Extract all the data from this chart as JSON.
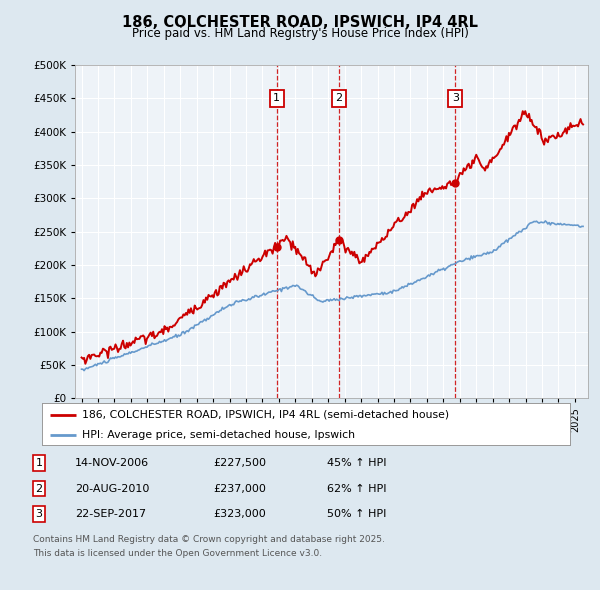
{
  "title": "186, COLCHESTER ROAD, IPSWICH, IP4 4RL",
  "subtitle": "Price paid vs. HM Land Registry's House Price Index (HPI)",
  "ylim": [
    0,
    500000
  ],
  "xlim_start": 1994.6,
  "xlim_end": 2025.8,
  "sale_dates": [
    2006.87,
    2010.64,
    2017.73
  ],
  "sale_prices": [
    227500,
    237000,
    323000
  ],
  "sale_labels": [
    "1",
    "2",
    "3"
  ],
  "legend_line1": "186, COLCHESTER ROAD, IPSWICH, IP4 4RL (semi-detached house)",
  "legend_line2": "HPI: Average price, semi-detached house, Ipswich",
  "footnote1": "Contains HM Land Registry data © Crown copyright and database right 2025.",
  "footnote2": "This data is licensed under the Open Government Licence v3.0.",
  "red_color": "#cc0000",
  "blue_color": "#6699cc",
  "background_color": "#dde8f0",
  "plot_bg_color": "#eef3f8",
  "grid_color": "#ffffff",
  "table_rows": [
    {
      "num": "1",
      "date": "14-NOV-2006",
      "price": "£227,500",
      "hpi": "45% ↑ HPI"
    },
    {
      "num": "2",
      "date": "20-AUG-2010",
      "price": "£237,000",
      "hpi": "62% ↑ HPI"
    },
    {
      "num": "3",
      "date": "22-SEP-2017",
      "price": "£323,000",
      "hpi": "50% ↑ HPI"
    }
  ]
}
